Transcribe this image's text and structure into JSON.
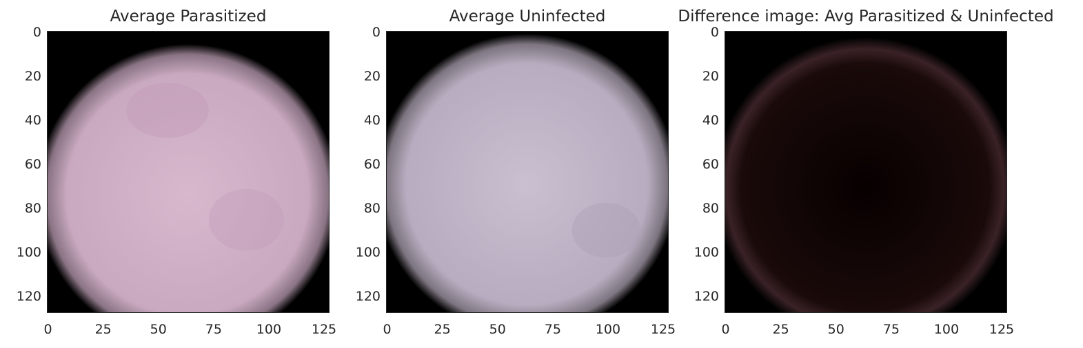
{
  "panels": [
    {
      "title": "Average Parasitized",
      "image": "average-parasitized-cell",
      "colors": {
        "center": "#d7b8cd",
        "mid": "#c9a9c0",
        "edge": "#8a7484",
        "background": "#000000"
      }
    },
    {
      "title": "Average Uninfected",
      "image": "average-uninfected-cell",
      "colors": {
        "center": "#c9bfd0",
        "mid": "#b8adc0",
        "edge": "#7d7580",
        "background": "#000000"
      }
    },
    {
      "title": "Difference image: Avg Parasitized & Uninfected",
      "image": "difference-image",
      "colors": {
        "center": "#070000",
        "mid": "#1a0a0a",
        "edge": "#3a2226",
        "background": "#000000"
      }
    }
  ],
  "axes": {
    "y_ticks": [
      "0",
      "20",
      "40",
      "60",
      "80",
      "100",
      "120"
    ],
    "x_ticks": [
      "0",
      "25",
      "50",
      "75",
      "100",
      "125"
    ]
  }
}
